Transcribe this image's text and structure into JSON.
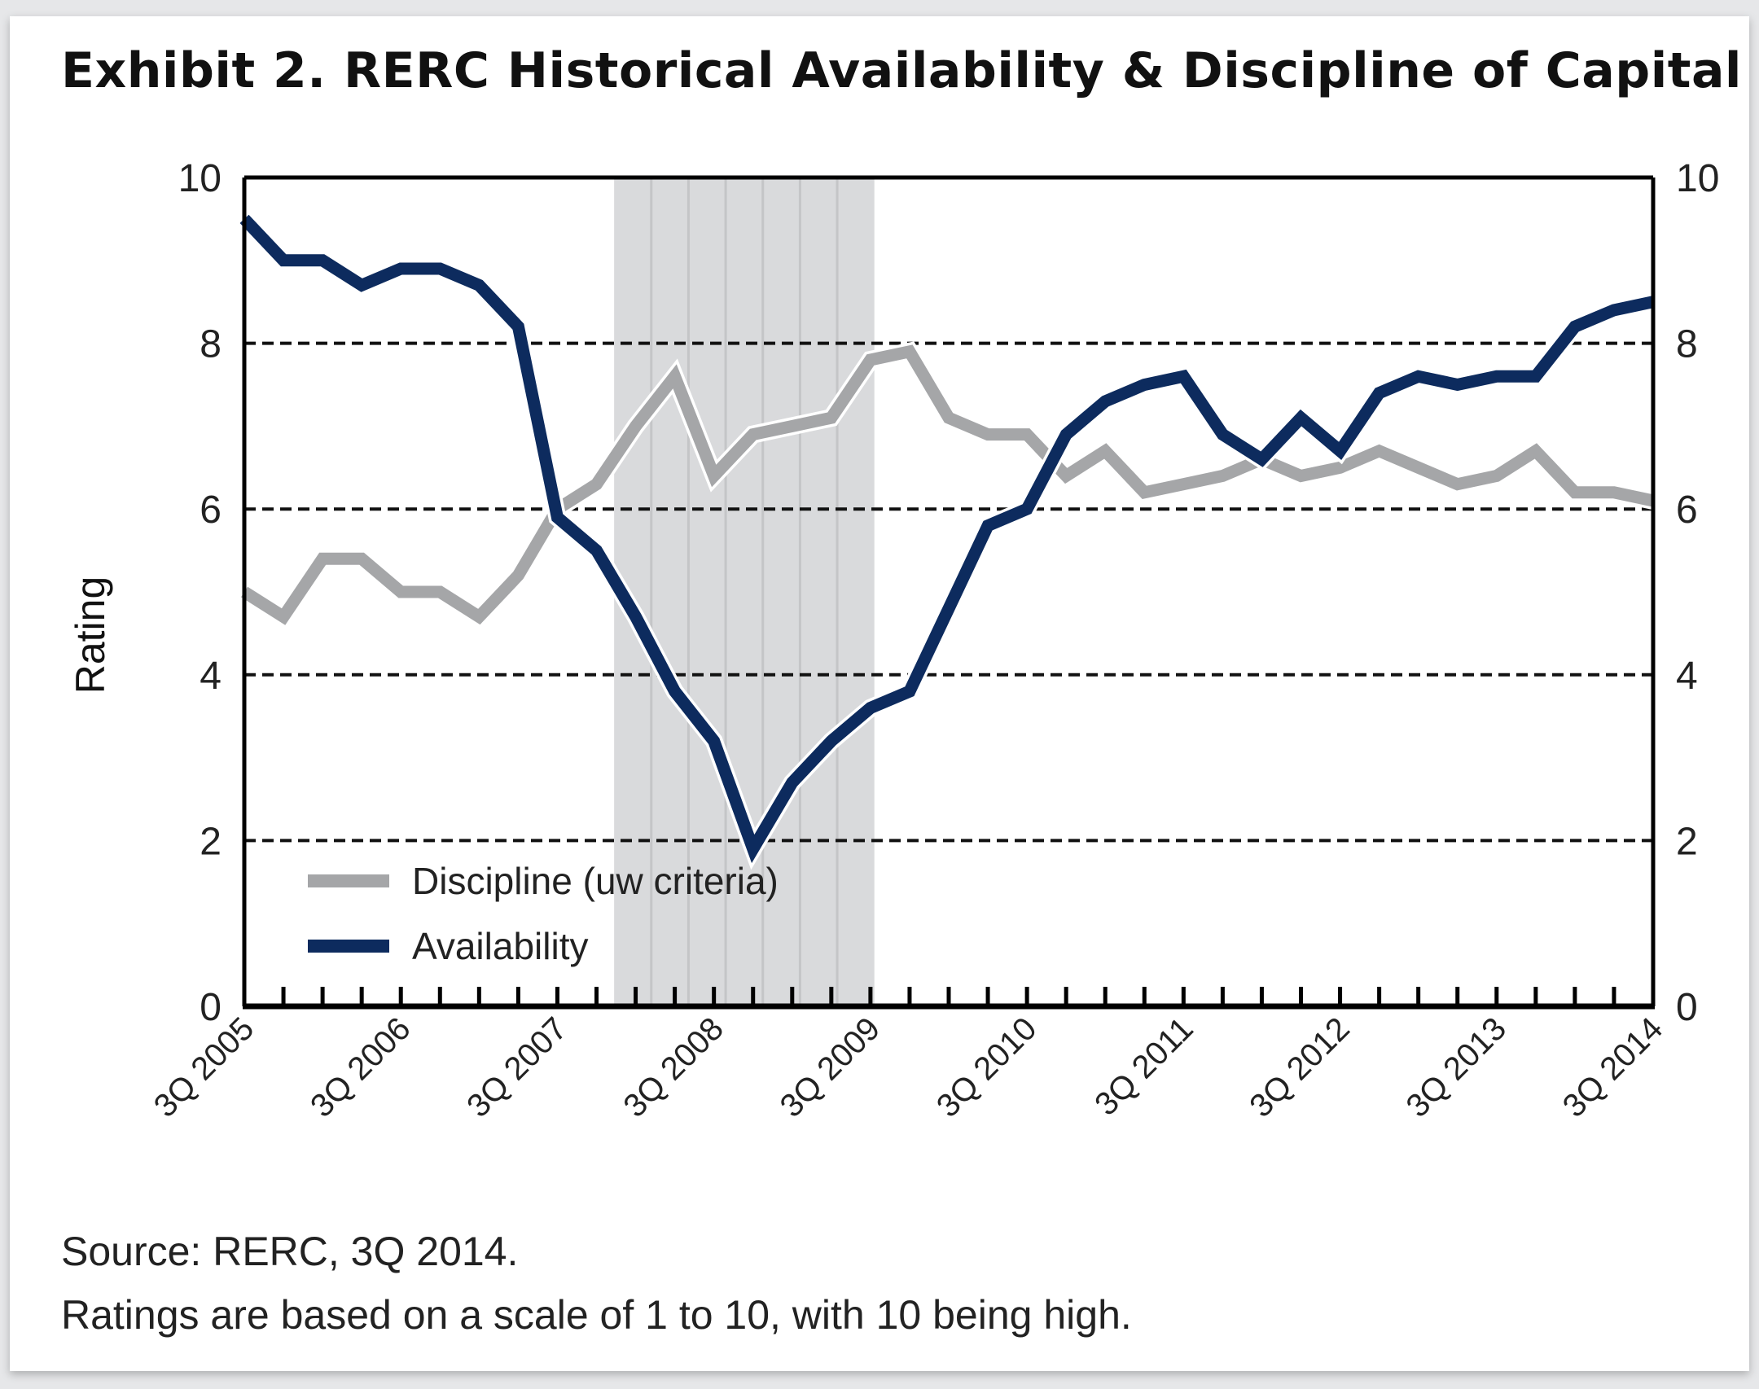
{
  "title": "Exhibit 2. RERC Historical Availability & Discipline of Capital",
  "footer": {
    "source": "Source: RERC, 3Q 2014.",
    "note": "Ratings are based on a scale of 1 to 10, with 10 being high."
  },
  "colors": {
    "availability": "#0d2b5e",
    "discipline": "#a5a6a8",
    "shading": "#d9dadc",
    "shading_lines": "#c4c5c7",
    "gridline": "#111111",
    "axis": "#000000"
  },
  "chart_data": {
    "type": "line",
    "title": "Exhibit 2. RERC Historical Availability & Discipline of Capital",
    "xlabel": "",
    "ylabel": "Rating",
    "ylim": [
      0,
      10
    ],
    "yticks": [
      0,
      2,
      4,
      6,
      8,
      10
    ],
    "y2ticks": [
      0,
      2,
      4,
      6,
      8,
      10
    ],
    "grid": "horizontal dashed",
    "legend_position": "bottom-left inside plot",
    "x": [
      "3Q 2005",
      "4Q 2005",
      "1Q 2006",
      "2Q 2006",
      "3Q 2006",
      "4Q 2006",
      "1Q 2007",
      "2Q 2007",
      "3Q 2007",
      "4Q 2007",
      "1Q 2008",
      "2Q 2008",
      "3Q 2008",
      "4Q 2008",
      "1Q 2009",
      "2Q 2009",
      "3Q 2009",
      "4Q 2009",
      "1Q 2010",
      "2Q 2010",
      "3Q 2010",
      "4Q 2010",
      "1Q 2011",
      "2Q 2011",
      "3Q 2011",
      "4Q 2011",
      "1Q 2012",
      "2Q 2012",
      "3Q 2012",
      "4Q 2012",
      "1Q 2013",
      "2Q 2013",
      "3Q 2013",
      "4Q 2013",
      "1Q 2014",
      "2Q 2014",
      "3Q 2014"
    ],
    "xtick_labels": [
      "3Q 2005",
      "3Q 2006",
      "3Q 2007",
      "3Q 2008",
      "3Q 2009",
      "3Q 2010",
      "3Q 2011",
      "3Q 2012",
      "3Q 2013",
      "3Q 2014"
    ],
    "xtick_label_every": 4,
    "shaded_region": {
      "label": "",
      "start_index": 9.45,
      "end_index": 16.1,
      "inner_lines": 6
    },
    "series": [
      {
        "name": "Discipline (uw criteria)",
        "color": "#a5a6a8",
        "values": [
          5.0,
          4.7,
          5.4,
          5.4,
          5.0,
          5.0,
          4.7,
          5.2,
          6.0,
          6.3,
          7.0,
          7.6,
          6.4,
          6.9,
          7.0,
          7.1,
          7.8,
          7.9,
          7.1,
          6.9,
          6.9,
          6.4,
          6.7,
          6.2,
          6.3,
          6.4,
          6.6,
          6.4,
          6.5,
          6.7,
          6.5,
          6.3,
          6.4,
          6.7,
          6.2,
          6.2,
          6.1
        ]
      },
      {
        "name": "Availability",
        "color": "#0d2b5e",
        "values": [
          9.5,
          9.0,
          9.0,
          8.7,
          8.9,
          8.9,
          8.7,
          8.2,
          5.9,
          5.5,
          4.7,
          3.8,
          3.2,
          1.9,
          2.7,
          3.2,
          3.6,
          3.8,
          4.8,
          5.8,
          6.0,
          6.9,
          7.3,
          7.5,
          7.6,
          6.9,
          6.6,
          7.1,
          6.7,
          7.4,
          7.6,
          7.5,
          7.6,
          7.6,
          8.2,
          8.4,
          8.5
        ]
      }
    ]
  }
}
